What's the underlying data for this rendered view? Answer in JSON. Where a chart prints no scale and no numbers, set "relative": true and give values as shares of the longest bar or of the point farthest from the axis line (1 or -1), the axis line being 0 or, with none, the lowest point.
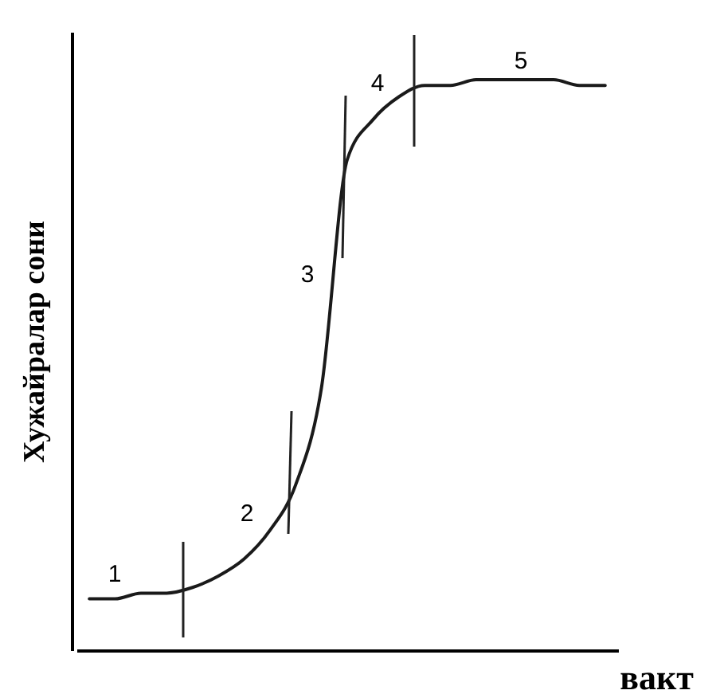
{
  "chart_data": {
    "type": "line",
    "relative": true,
    "ylabel": "Хужайралар сони",
    "xlabel": "вакт",
    "categories": [
      null,
      null,
      null,
      null,
      null,
      null,
      null,
      null,
      null,
      null,
      null,
      null,
      null,
      null,
      null,
      null,
      null,
      null,
      null,
      null,
      null
    ],
    "series": [
      {
        "color": "#1a1a1a",
        "values": [
          0.09,
          0.09,
          0.1,
          0.1,
          0.11,
          0.13,
          0.16,
          0.21,
          0.29,
          0.46,
          0.86,
          0.93,
          0.97,
          0.99,
          0.99,
          1,
          1,
          1,
          1,
          0.99,
          0.99
        ]
      }
    ],
    "annotations": [
      "1",
      "2",
      "3",
      "4",
      "5"
    ],
    "marker": "none",
    "line_style": "solid",
    "grid": false,
    "legend": false
  }
}
